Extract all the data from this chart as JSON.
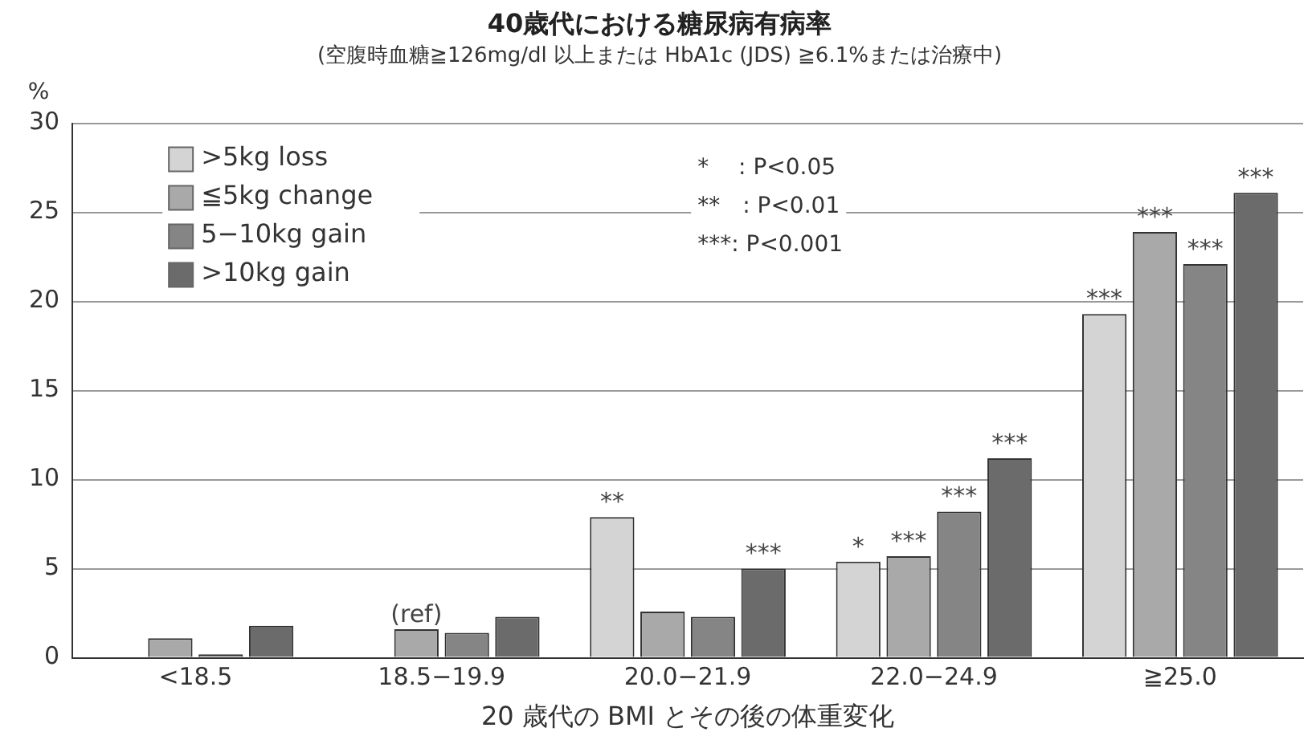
{
  "chart_data": {
    "type": "bar",
    "title": "40歳代における糖尿病有病率",
    "subtitle": "(空腹時血糖≧126mg/dl 以上または HbA1c (JDS) ≧6.1%または治療中)",
    "ylabel": "%",
    "xlabel": "20 歳代の BMI とその後の体重変化",
    "categories": [
      "<18.5",
      "18.5−19.9",
      "20.0−21.9",
      "22.0−24.9",
      "≧25.0"
    ],
    "series": [
      {
        "name": ">5kg loss",
        "color": "#d4d4d4",
        "values": [
          null,
          null,
          7.9,
          5.4,
          19.3
        ],
        "value_labels": [
          null,
          null,
          "**",
          "*",
          "***"
        ]
      },
      {
        "name": "≦5kg change",
        "color": "#a9a9a9",
        "values": [
          1.1,
          1.6,
          2.6,
          5.7,
          23.9
        ],
        "value_labels": [
          null,
          "(ref)",
          null,
          "***",
          "***"
        ]
      },
      {
        "name": "5−10kg gain",
        "color": "#858585",
        "values": [
          0.2,
          1.4,
          2.3,
          8.2,
          22.1
        ],
        "value_labels": [
          null,
          null,
          null,
          "***",
          "***"
        ]
      },
      {
        "name": ">10kg gain",
        "color": "#6b6b6b",
        "values": [
          1.8,
          2.3,
          5.0,
          11.2,
          26.1
        ],
        "value_labels": [
          null,
          null,
          "***",
          "***",
          "***"
        ]
      }
    ],
    "ylim": [
      0,
      30
    ],
    "yticks": [
      0,
      5,
      10,
      15,
      20,
      25,
      30
    ],
    "grid": "y",
    "legend": "top left",
    "annotations": [
      "*　 : P<0.05",
      "**　: P<0.01",
      "***: P<0.001"
    ]
  }
}
